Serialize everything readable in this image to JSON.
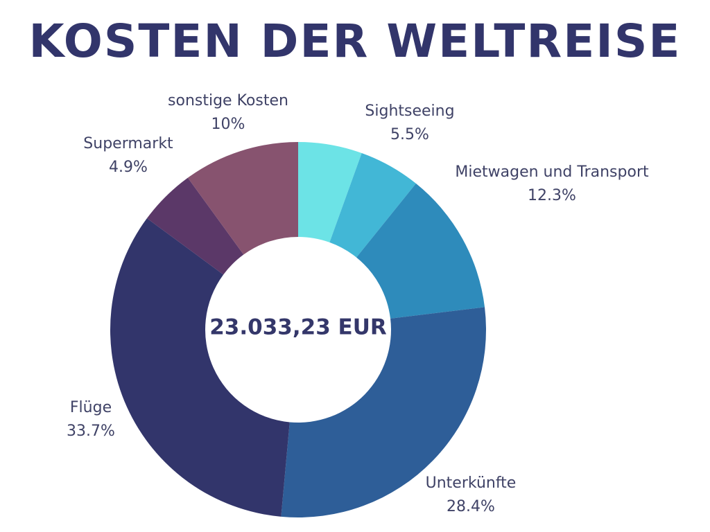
{
  "chart_data": {
    "type": "pie",
    "variant": "donut",
    "title": "KOSTEN DER WELTREISE",
    "center_label": "23.033,23 EUR",
    "slices": [
      {
        "label": "Sightseeing",
        "value_label": "5.5%",
        "value": 5.5,
        "color": "#6ce3e6"
      },
      {
        "label": "",
        "value_label": "",
        "value": 5.3,
        "color": "#42b7d6"
      },
      {
        "label": "Mietwagen und Transport",
        "value_label": "12.3%",
        "value": 12.3,
        "color": "#2e8bbb"
      },
      {
        "label": "Unterkünfte",
        "value_label": "28.4%",
        "value": 28.4,
        "color": "#2e5e98"
      },
      {
        "label": "Flüge",
        "value_label": "33.7%",
        "value": 33.7,
        "color": "#32356b"
      },
      {
        "label": "Supermarkt",
        "value_label": "4.9%",
        "value": 4.9,
        "color": "#5b3868"
      },
      {
        "label": "sonstige Kosten",
        "value_label": "10%",
        "value": 10.0,
        "color": "#87536f"
      }
    ]
  }
}
